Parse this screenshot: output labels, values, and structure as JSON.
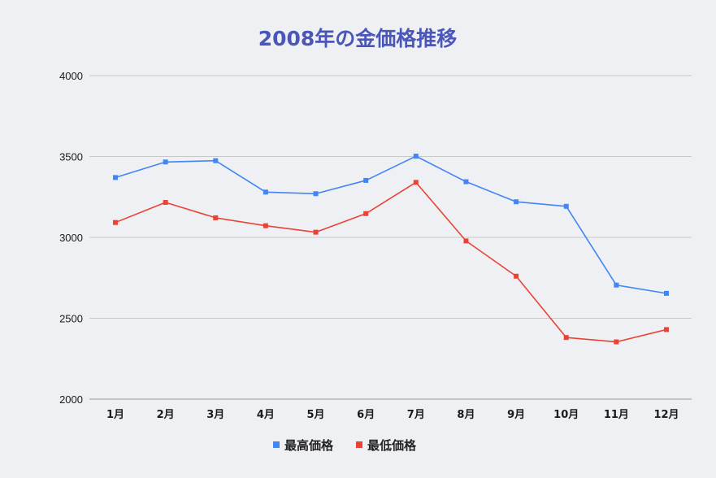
{
  "chart_data": {
    "type": "line",
    "title": "2008年の金価格推移",
    "xlabel": "",
    "ylabel": "",
    "categories": [
      "1月",
      "2月",
      "3月",
      "4月",
      "5月",
      "6月",
      "7月",
      "8月",
      "9月",
      "10月",
      "11月",
      "12月"
    ],
    "ylim": [
      2000,
      4000
    ],
    "yticks": [
      2000,
      2500,
      3000,
      3500,
      4000
    ],
    "grid": true,
    "legend_position": "bottom",
    "series": [
      {
        "name": "最高価格",
        "color": "#4285f4",
        "values": [
          3370,
          3466,
          3474,
          3280,
          3270,
          3352,
          3502,
          3344,
          3220,
          3192,
          2705,
          2654
        ]
      },
      {
        "name": "最低価格",
        "color": "#ea4335",
        "values": [
          3092,
          3216,
          3121,
          3072,
          3032,
          3147,
          3340,
          2978,
          2760,
          2381,
          2354,
          2430
        ]
      }
    ]
  },
  "colors": {
    "title": "#4a56b8",
    "grid": "#c8c8c8",
    "background": "#eef0f3"
  }
}
